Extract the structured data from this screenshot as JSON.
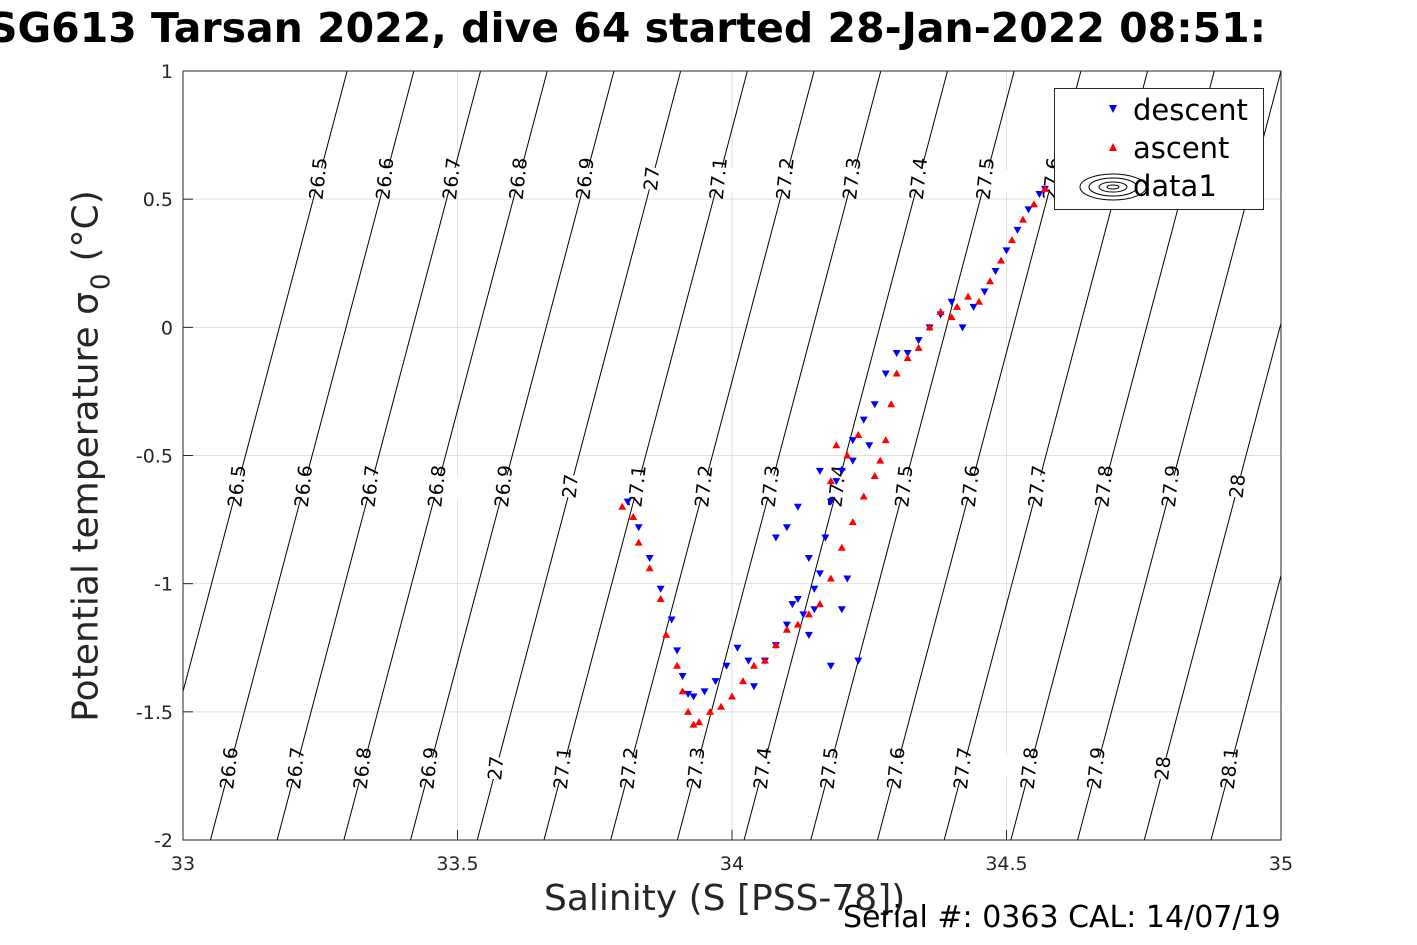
{
  "title": "SG613 Tarsan 2022, dive 64 started 28-Jan-2022 08:51:",
  "footer": "Serial #: 0363  CAL: 14/07/19",
  "chart_data": {
    "type": "scatter",
    "xlabel": "Salinity (S [PSS-78])",
    "ylabel_main": "Potential temperature σ",
    "ylabel_sub": "0",
    "ylabel_unit": "(°C)",
    "xlim": [
      33,
      35
    ],
    "ylim": [
      -2,
      1
    ],
    "xticks": [
      "33",
      "33.5",
      "34",
      "34.5",
      "35"
    ],
    "yticks": [
      "1",
      "0.5",
      "0",
      "-0.5",
      "-1",
      "-1.5",
      "-2"
    ],
    "grid": true,
    "legend_position": "top-right",
    "legend": [
      "descent",
      "ascent",
      "data1"
    ],
    "colors": {
      "descent": "#0000ff",
      "ascent": "#ff0000",
      "contour": "#000000"
    },
    "density_contour_labels": [
      "26.5",
      "26.6",
      "26.7",
      "26.8",
      "26.9",
      "27",
      "27.1",
      "27.2",
      "27.3",
      "27.4",
      "27.5",
      "27.6",
      "27.7",
      "27.8",
      "27.9",
      "28",
      "28.1"
    ],
    "series": [
      {
        "name": "descent",
        "marker": "triangle-down",
        "x": [
          33.81,
          33.83,
          33.85,
          33.87,
          33.89,
          33.9,
          33.91,
          33.92,
          33.93,
          33.95,
          33.97,
          33.99,
          34.01,
          34.03,
          34.04,
          34.06,
          34.08,
          34.1,
          34.11,
          34.12,
          34.13,
          34.14,
          34.15,
          34.16,
          34.17,
          34.18,
          34.2,
          34.22,
          34.24,
          34.26,
          34.28,
          34.3,
          34.32,
          34.34,
          34.36,
          34.38,
          34.4,
          34.42,
          34.44,
          34.46,
          34.48,
          34.5,
          34.52,
          34.54,
          34.56,
          34.57,
          34.16,
          34.19,
          34.22,
          34.14,
          34.1,
          34.25,
          34.2,
          34.12,
          34.18,
          34.21,
          34.15,
          34.08,
          34.23
        ],
        "y": [
          -0.68,
          -0.78,
          -0.9,
          -1.02,
          -1.14,
          -1.26,
          -1.36,
          -1.43,
          -1.44,
          -1.42,
          -1.38,
          -1.32,
          -1.25,
          -1.3,
          -1.4,
          -1.3,
          -1.24,
          -1.16,
          -1.08,
          -1.06,
          -1.12,
          -1.2,
          -1.1,
          -0.96,
          -0.82,
          -0.68,
          -0.56,
          -0.44,
          -0.36,
          -0.3,
          -0.18,
          -0.1,
          -0.1,
          -0.05,
          0.0,
          0.05,
          0.1,
          0.0,
          0.08,
          0.14,
          0.22,
          0.3,
          0.38,
          0.46,
          0.52,
          0.54,
          -0.56,
          -0.6,
          -0.52,
          -0.9,
          -0.78,
          -0.46,
          -1.1,
          -0.7,
          -1.32,
          -0.98,
          -1.02,
          -0.82,
          -1.3
        ]
      },
      {
        "name": "ascent",
        "marker": "triangle-up",
        "x": [
          33.8,
          33.82,
          33.83,
          33.85,
          33.87,
          33.88,
          33.9,
          33.91,
          33.92,
          33.93,
          33.94,
          33.96,
          33.98,
          34.0,
          34.02,
          34.04,
          34.06,
          34.08,
          34.1,
          34.12,
          34.14,
          34.16,
          34.18,
          34.2,
          34.22,
          34.24,
          34.26,
          34.27,
          34.28,
          34.29,
          34.3,
          34.32,
          34.34,
          34.36,
          34.38,
          34.4,
          34.41,
          34.43,
          34.45,
          34.47,
          34.49,
          34.51,
          34.53,
          34.55,
          34.57,
          34.19,
          34.21,
          34.23,
          34.18
        ],
        "y": [
          -0.7,
          -0.74,
          -0.84,
          -0.94,
          -1.06,
          -1.2,
          -1.32,
          -1.42,
          -1.5,
          -1.55,
          -1.54,
          -1.5,
          -1.48,
          -1.44,
          -1.38,
          -1.32,
          -1.3,
          -1.24,
          -1.18,
          -1.16,
          -1.12,
          -1.08,
          -0.98,
          -0.86,
          -0.76,
          -0.66,
          -0.58,
          -0.52,
          -0.44,
          -0.3,
          -0.18,
          -0.12,
          -0.08,
          0.0,
          0.06,
          0.04,
          0.08,
          0.12,
          0.1,
          0.18,
          0.26,
          0.34,
          0.42,
          0.48,
          0.54,
          -0.46,
          -0.5,
          -0.42,
          -0.6
        ]
      }
    ]
  }
}
